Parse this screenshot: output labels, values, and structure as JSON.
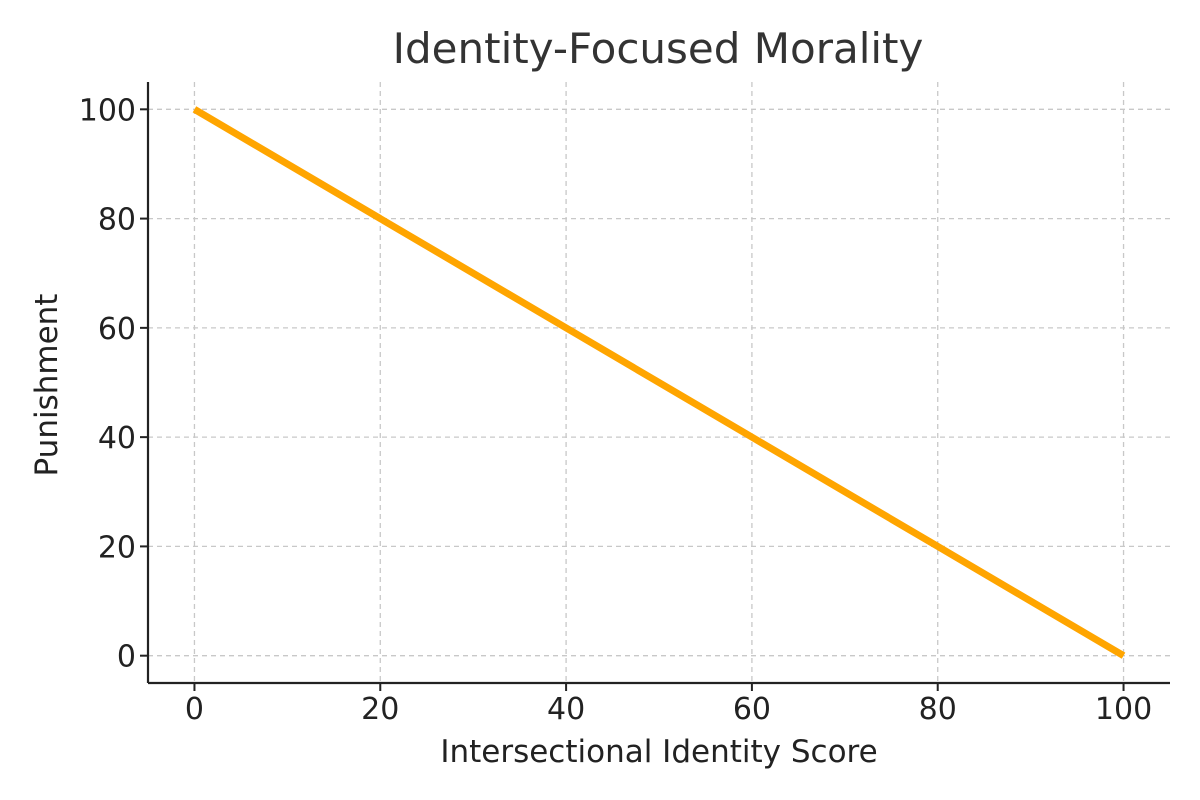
{
  "chart_data": {
    "type": "line",
    "title": "Identity-Focused Morality",
    "xlabel": "Intersectional Identity Score",
    "ylabel": "Punishment",
    "xlim": [
      -5,
      105
    ],
    "ylim": [
      -5,
      105
    ],
    "x_ticks": [
      0,
      20,
      40,
      60,
      80,
      100
    ],
    "y_ticks": [
      0,
      20,
      40,
      60,
      80,
      100
    ],
    "grid": true,
    "series": [
      {
        "color": "#FFA500",
        "x": [
          0,
          20,
          40,
          60,
          80,
          100
        ],
        "y": [
          100,
          80,
          60,
          40,
          20,
          0
        ]
      }
    ]
  }
}
